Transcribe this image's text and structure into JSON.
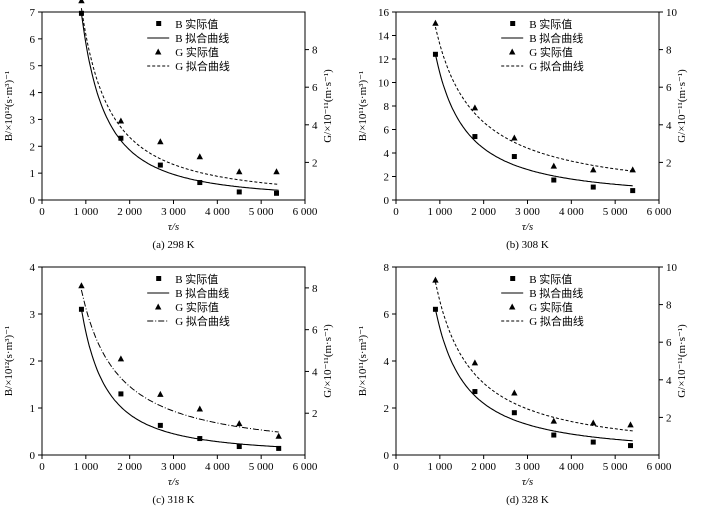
{
  "chart_data": [
    {
      "type": "scatter",
      "caption": "(a) 298 K",
      "xlabel": "τ/s",
      "ylabel_left": "B/×10¹²(s·m³)⁻¹",
      "ylabel_right": "G/×10⁻¹¹(m·s⁻¹)",
      "xlim": [
        0,
        6000
      ],
      "ylim_left": [
        0,
        7
      ],
      "ylim_right": [
        0,
        10
      ],
      "xticks": [
        0,
        1000,
        2000,
        3000,
        4000,
        5000,
        6000
      ],
      "xtick_labels": [
        "0",
        "1 000",
        "2 000",
        "3 000",
        "4 000",
        "5 000",
        "6 000"
      ],
      "yticks_left": [
        0,
        1,
        2,
        3,
        4,
        5,
        6,
        7
      ],
      "yticks_right": [
        2,
        4,
        6,
        8
      ],
      "legend": [
        "B 实际值",
        "B 拟合曲线",
        "G 实际值",
        "G 拟合曲线"
      ],
      "B_points": {
        "x": [
          900,
          1800,
          2700,
          3600,
          4500,
          5350
        ],
        "y": [
          6.95,
          2.3,
          1.3,
          0.65,
          0.3,
          0.25
        ]
      },
      "G_points": {
        "x": [
          900,
          1800,
          2700,
          3600,
          4500,
          5350
        ],
        "y": [
          10.6,
          4.2,
          3.1,
          2.3,
          1.5,
          1.5
        ]
      },
      "B_fit": {
        "a": 6.95,
        "x0": 900,
        "p": 1.65
      },
      "G_fit": {
        "a": 10.2,
        "x0": 900,
        "p": 1.4
      },
      "G_fit_style": "dashed"
    },
    {
      "type": "scatter",
      "caption": "(b) 308 K",
      "xlabel": "τ/s",
      "ylabel_left": "B/×10¹¹(s·m³)⁻¹",
      "ylabel_right": "G/×10⁻¹¹(m·s⁻¹)",
      "xlim": [
        0,
        6000
      ],
      "ylim_left": [
        0,
        16
      ],
      "ylim_right": [
        0,
        10
      ],
      "xticks": [
        0,
        1000,
        2000,
        3000,
        4000,
        5000,
        6000
      ],
      "xtick_labels": [
        "0",
        "1 000",
        "2 000",
        "3 000",
        "4 000",
        "5 000",
        "6 000"
      ],
      "yticks_left": [
        0,
        2,
        4,
        6,
        8,
        10,
        12,
        14,
        16
      ],
      "yticks_right": [
        2,
        4,
        6,
        8,
        10
      ],
      "legend": [
        "B 实际值",
        "B 拟合曲线",
        "G 实际值",
        "G 拟合曲线"
      ],
      "B_points": {
        "x": [
          900,
          1800,
          2700,
          3600,
          4500,
          5400
        ],
        "y": [
          12.4,
          5.4,
          3.7,
          1.7,
          1.1,
          0.8
        ]
      },
      "G_points": {
        "x": [
          900,
          1800,
          2700,
          3600,
          4500,
          5400
        ],
        "y": [
          9.4,
          4.9,
          3.3,
          1.8,
          1.6,
          1.6
        ]
      },
      "B_fit": {
        "a": 12.4,
        "x0": 900,
        "p": 1.3
      },
      "G_fit": {
        "a": 9.2,
        "x0": 900,
        "p": 1.0
      },
      "G_fit_style": "dashed"
    },
    {
      "type": "scatter",
      "caption": "(c) 318 K",
      "xlabel": "τ/s",
      "ylabel_left": "B/×10¹²(s·m³)⁻¹",
      "ylabel_right": "G/×10⁻¹¹(m·s⁻¹)",
      "xlim": [
        0,
        6000
      ],
      "ylim_left": [
        0,
        4
      ],
      "ylim_right": [
        0,
        9
      ],
      "xticks": [
        0,
        1000,
        2000,
        3000,
        4000,
        5000,
        6000
      ],
      "xtick_labels": [
        "0",
        "1 000",
        "2 000",
        "3 000",
        "4 000",
        "5 000",
        "6 000"
      ],
      "yticks_left": [
        0,
        1,
        2,
        3,
        4
      ],
      "yticks_right": [
        2,
        4,
        6,
        8
      ],
      "legend": [
        "B 实际值",
        "B 拟合曲线",
        "G 实际值",
        "G 拟合曲线"
      ],
      "B_points": {
        "x": [
          900,
          1800,
          2700,
          3600,
          4500,
          5400
        ],
        "y": [
          3.1,
          1.3,
          0.63,
          0.35,
          0.18,
          0.14
        ]
      },
      "G_points": {
        "x": [
          900,
          1800,
          2700,
          3600,
          4500,
          5400
        ],
        "y": [
          8.1,
          4.6,
          2.9,
          2.2,
          1.5,
          0.9
        ]
      },
      "B_fit": {
        "a": 3.1,
        "x0": 900,
        "p": 1.6
      },
      "G_fit": {
        "a": 7.9,
        "x0": 900,
        "p": 1.1
      },
      "G_fit_style": "dashdot"
    },
    {
      "type": "scatter",
      "caption": "(d) 328 K",
      "xlabel": "τ/s",
      "ylabel_left": "B/×10¹¹(s·m³)⁻¹",
      "ylabel_right": "G/×10⁻¹¹(m·s⁻¹)",
      "xlim": [
        0,
        6000
      ],
      "ylim_left": [
        0,
        8
      ],
      "ylim_right": [
        0,
        10
      ],
      "xticks": [
        0,
        1000,
        2000,
        3000,
        4000,
        5000,
        6000
      ],
      "xtick_labels": [
        "0",
        "1 000",
        "2 000",
        "3 000",
        "4 000",
        "5 000",
        "6 000"
      ],
      "yticks_left": [
        0,
        2,
        4,
        6,
        8
      ],
      "yticks_right": [
        2,
        4,
        6,
        8,
        10
      ],
      "legend": [
        "B 实际值",
        "B 拟合曲线",
        "G 实际值",
        "G 拟合曲线"
      ],
      "B_points": {
        "x": [
          900,
          1800,
          2700,
          3600,
          4500,
          5350
        ],
        "y": [
          6.2,
          2.7,
          1.8,
          0.85,
          0.55,
          0.4
        ]
      },
      "G_points": {
        "x": [
          900,
          1800,
          2700,
          3600,
          4500,
          5350
        ],
        "y": [
          9.3,
          4.9,
          3.3,
          1.8,
          1.7,
          1.6
        ]
      },
      "B_fit": {
        "a": 6.2,
        "x0": 900,
        "p": 1.3
      },
      "G_fit": {
        "a": 9.2,
        "x0": 900,
        "p": 1.1
      },
      "G_fit_style": "dashed"
    }
  ]
}
